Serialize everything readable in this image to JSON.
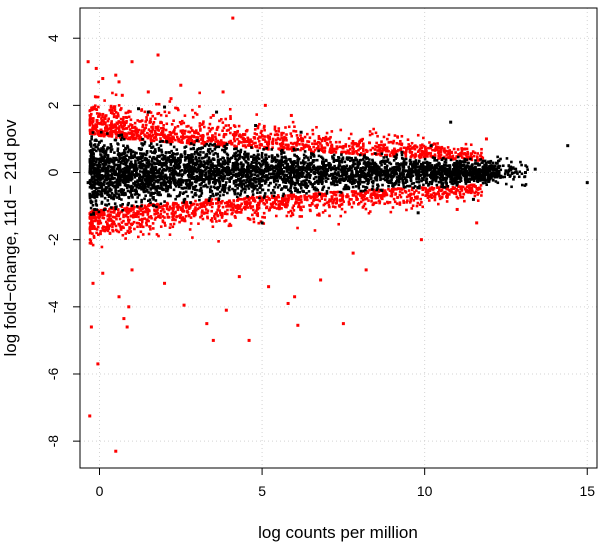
{
  "chart_data": {
    "type": "scatter",
    "title": "",
    "xlabel": "log counts per million",
    "ylabel": "log fold−change, 11d − 21d pov",
    "xlim": [
      -0.6,
      15.3
    ],
    "ylim": [
      -8.8,
      4.9
    ],
    "xticks": [
      0,
      5,
      10,
      15
    ],
    "yticks": [
      -8,
      -6,
      -4,
      -2,
      0,
      2,
      4
    ],
    "grid": true,
    "legend": "none",
    "colors": {
      "not_significant": "#000000",
      "significant": "#ff0000"
    },
    "series": [
      {
        "color": "#000000",
        "points": [
          [
            -0.35,
            -0.3
          ],
          [
            -0.2,
            0.7
          ],
          [
            -0.15,
            -1.1
          ],
          [
            0.0,
            0.9
          ],
          [
            0.6,
            1.1
          ],
          [
            1.2,
            1.9
          ],
          [
            1.5,
            1.8
          ],
          [
            2.0,
            1.95
          ],
          [
            3.0,
            0.95
          ],
          [
            3.6,
            1.8
          ],
          [
            4.8,
            1.4
          ],
          [
            5.0,
            -1.5
          ],
          [
            6.2,
            1.2
          ],
          [
            8.9,
            -0.3
          ],
          [
            9.3,
            0.6
          ],
          [
            9.8,
            -1.2
          ],
          [
            10.2,
            0.8
          ],
          [
            10.8,
            1.5
          ],
          [
            11.5,
            -0.8
          ],
          [
            12.0,
            0.3
          ],
          [
            12.5,
            0.05
          ],
          [
            13.1,
            0.0
          ],
          [
            13.4,
            0.1
          ],
          [
            14.4,
            0.8
          ],
          [
            15.0,
            -0.3
          ]
        ]
      },
      {
        "color": "#ff0000",
        "points": [
          [
            -0.35,
            3.3
          ],
          [
            -0.1,
            3.1
          ],
          [
            0.1,
            2.8
          ],
          [
            0.5,
            2.9
          ],
          [
            0.6,
            2.7
          ],
          [
            0.7,
            2.3
          ],
          [
            1.0,
            3.3
          ],
          [
            1.5,
            2.4
          ],
          [
            1.8,
            3.5
          ],
          [
            2.2,
            2.2
          ],
          [
            2.5,
            2.6
          ],
          [
            3.5,
            1.7
          ],
          [
            3.8,
            2.4
          ],
          [
            4.1,
            4.6
          ],
          [
            5.1,
            2.0
          ],
          [
            5.9,
            1.7
          ],
          [
            8.0,
            0.9
          ],
          [
            10.5,
            0.7
          ],
          [
            11.9,
            1.0
          ],
          [
            -0.3,
            -7.25
          ],
          [
            -0.25,
            -4.6
          ],
          [
            -0.2,
            -3.3
          ],
          [
            -0.05,
            -5.7
          ],
          [
            0.1,
            -3.0
          ],
          [
            0.5,
            -8.3
          ],
          [
            0.6,
            -3.7
          ],
          [
            0.75,
            -4.35
          ],
          [
            0.85,
            -4.6
          ],
          [
            0.9,
            -4.0
          ],
          [
            1.0,
            -2.9
          ],
          [
            2.0,
            -3.3
          ],
          [
            2.6,
            -3.95
          ],
          [
            3.3,
            -4.5
          ],
          [
            3.5,
            -5.0
          ],
          [
            3.9,
            -4.1
          ],
          [
            4.3,
            -3.1
          ],
          [
            4.6,
            -5.0
          ],
          [
            5.2,
            -3.4
          ],
          [
            5.8,
            -3.9
          ],
          [
            6.0,
            -3.7
          ],
          [
            6.1,
            -4.55
          ],
          [
            6.8,
            -3.2
          ],
          [
            7.5,
            -4.5
          ],
          [
            7.8,
            -2.4
          ],
          [
            8.2,
            -2.9
          ],
          [
            9.9,
            -2.0
          ],
          [
            11.6,
            -1.5
          ],
          [
            11.0,
            -1.1
          ]
        ]
      }
    ]
  }
}
